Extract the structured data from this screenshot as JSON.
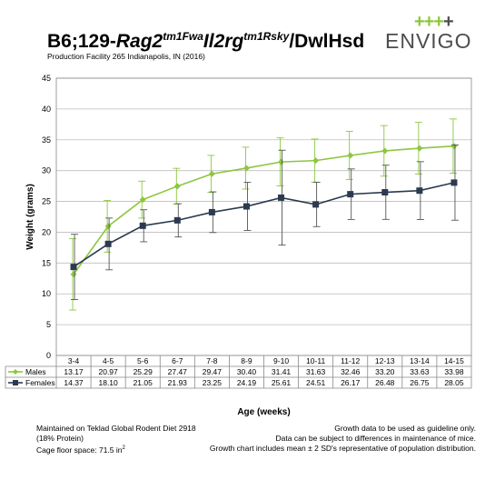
{
  "header": {
    "title_prefix": "B6;129-",
    "title_gene1": "Rag2",
    "title_allele1": "tm1Fwa",
    "title_gene2": "Il2rg",
    "title_allele2": "tm1Rsky",
    "title_suffix": "/DwlHsd",
    "subtitle": "Production Facility 265 Indianapolis, IN (2016)",
    "logo_plus_green": "+++",
    "logo_plus_dark": "+",
    "logo_text": "ENVIGO"
  },
  "colors": {
    "males": "#8dc63f",
    "females": "#2b3a4f",
    "grid": "#bdbdbd",
    "error_bar": "#555555"
  },
  "chart_data": {
    "type": "line",
    "categories": [
      "3-4",
      "4-5",
      "5-6",
      "6-7",
      "7-8",
      "8-9",
      "9-10",
      "10-11",
      "11-12",
      "12-13",
      "13-14",
      "14-15"
    ],
    "series": [
      {
        "name": "Males",
        "values": [
          13.17,
          20.97,
          25.29,
          27.47,
          29.47,
          30.4,
          31.41,
          31.63,
          32.46,
          33.2,
          33.63,
          33.98
        ],
        "sd2": [
          5.8,
          4.2,
          3.0,
          2.9,
          3.0,
          3.4,
          3.9,
          3.5,
          3.9,
          4.1,
          4.2,
          4.4
        ]
      },
      {
        "name": "Females",
        "values": [
          14.37,
          18.1,
          21.05,
          21.93,
          23.25,
          24.19,
          25.61,
          24.51,
          26.17,
          26.48,
          26.75,
          28.05
        ],
        "sd2": [
          5.3,
          4.2,
          2.6,
          2.7,
          3.3,
          3.9,
          7.7,
          3.6,
          4.1,
          4.4,
          4.7,
          6.1
        ]
      }
    ],
    "ylabel": "Weight (grams)",
    "xlabel": "Age (weeks)",
    "ylim": [
      0,
      45
    ],
    "yticks": [
      0,
      5,
      10,
      15,
      20,
      25,
      30,
      35,
      40,
      45
    ],
    "grid": true,
    "legend": "data-table-below"
  },
  "footer": {
    "left_line1": "Maintained on Teklad Global Rodent Diet 2918",
    "left_line2": "(18% Protein)",
    "left_line3_prefix": "Cage floor space: 71.5 in",
    "left_line3_sup": "2",
    "right_line1": "Growth data to be used as guideline only.",
    "right_line2": "Data can be subject to differences in maintenance of mice.",
    "right_line3": "Growth chart includes mean ± 2 SD's representative of population distribution."
  }
}
